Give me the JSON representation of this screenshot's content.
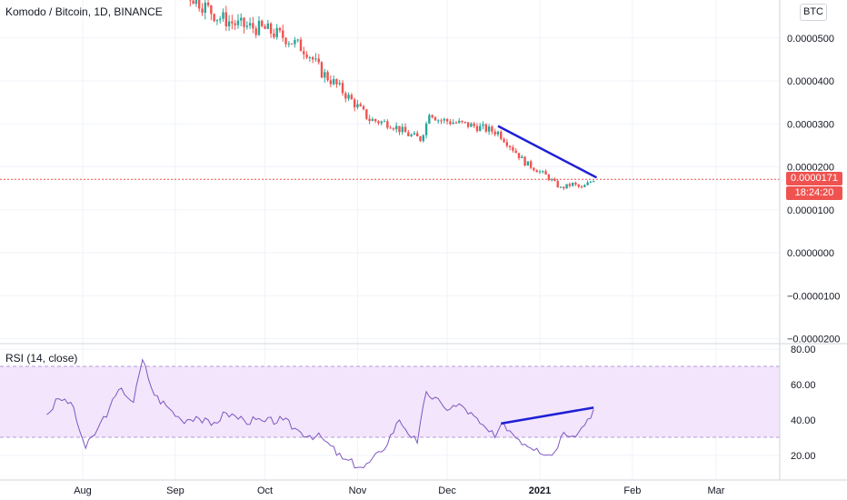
{
  "header": {
    "symbol_title": "Komodo / Bitcoin, 1D, BINANCE",
    "currency_badge": "BTC"
  },
  "price_tags": {
    "last_price": "0.0000171",
    "countdown": "18:24:20"
  },
  "rsi_panel": {
    "title": "RSI (14, close)"
  },
  "colors": {
    "up": "#26a69a",
    "down": "#ef5350",
    "trendline": "#1f1fd6",
    "rsi_line": "#7e57c2",
    "rsi_band": "#f3e5fb",
    "last_price_line": "#ef5350"
  },
  "chart_data": [
    {
      "type": "candlestick",
      "title": "Komodo / Bitcoin, 1D, BINANCE",
      "x_axis": {
        "ticks": [
          "Aug",
          "Sep",
          "Oct",
          "Nov",
          "Dec",
          "2021",
          "Feb",
          "Mar"
        ]
      },
      "y_axis": {
        "ticks": [
          "0.0000500",
          "0.0000400",
          "0.0000300",
          "0.0000200",
          "0.0000100",
          "0.0000000",
          "−0.0000100",
          "−0.0000200"
        ],
        "range": [
          -2.1e-05,
          6.2e-05
        ]
      },
      "last_price": 1.71e-05,
      "close_path": [
        {
          "date": "2020-07-26",
          "close": 6.6e-05
        },
        {
          "date": "2020-08-05",
          "close": 6.5e-05
        },
        {
          "date": "2020-08-20",
          "close": 6.9e-05
        },
        {
          "date": "2020-09-01",
          "close": 6.2e-05
        },
        {
          "date": "2020-09-08",
          "close": 5.9e-05
        },
        {
          "date": "2020-09-15",
          "close": 5.5e-05
        },
        {
          "date": "2020-09-22",
          "close": 5.3e-05
        },
        {
          "date": "2020-10-01",
          "close": 5.2e-05
        },
        {
          "date": "2020-10-08",
          "close": 5e-05
        },
        {
          "date": "2020-10-15",
          "close": 4.7e-05
        },
        {
          "date": "2020-10-20",
          "close": 4.2e-05
        },
        {
          "date": "2020-10-25",
          "close": 3.9e-05
        },
        {
          "date": "2020-11-01",
          "close": 3.4e-05
        },
        {
          "date": "2020-11-05",
          "close": 3.1e-05
        },
        {
          "date": "2020-11-12",
          "close": 3e-05
        },
        {
          "date": "2020-11-18",
          "close": 2.75e-05
        },
        {
          "date": "2020-11-22",
          "close": 2.65e-05
        },
        {
          "date": "2020-11-24",
          "close": 3e-05
        },
        {
          "date": "2020-11-25",
          "close": 3.3e-05
        },
        {
          "date": "2020-11-28",
          "close": 3.1e-05
        },
        {
          "date": "2020-12-02",
          "close": 3.05e-05
        },
        {
          "date": "2020-12-10",
          "close": 2.95e-05
        },
        {
          "date": "2020-12-18",
          "close": 2.8e-05
        },
        {
          "date": "2020-12-22",
          "close": 2.5e-05
        },
        {
          "date": "2020-12-27",
          "close": 2.1e-05
        },
        {
          "date": "2021-01-03",
          "close": 1.8e-05
        },
        {
          "date": "2021-01-08",
          "close": 1.5e-05
        },
        {
          "date": "2021-01-12",
          "close": 1.6e-05
        },
        {
          "date": "2021-01-15",
          "close": 1.5e-05
        },
        {
          "date": "2021-01-19",
          "close": 1.71e-05
        }
      ],
      "trendline": [
        {
          "date": "2020-12-18",
          "value": 2.95e-05
        },
        {
          "date": "2021-01-20",
          "value": 1.75e-05
        }
      ]
    },
    {
      "type": "line",
      "title": "RSI (14, close)",
      "y_axis": {
        "ticks": [
          "80.00",
          "60.00",
          "40.00",
          "20.00"
        ],
        "range": [
          12,
          80
        ]
      },
      "band": [
        30,
        70
      ],
      "series": [
        {
          "values": [
            {
              "date": "2020-07-20",
              "rsi": 43
            },
            {
              "date": "2020-07-24",
              "rsi": 52
            },
            {
              "date": "2020-07-28",
              "rsi": 50
            },
            {
              "date": "2020-08-02",
              "rsi": 24
            },
            {
              "date": "2020-08-06",
              "rsi": 35
            },
            {
              "date": "2020-08-10",
              "rsi": 47
            },
            {
              "date": "2020-08-14",
              "rsi": 58
            },
            {
              "date": "2020-08-18",
              "rsi": 50
            },
            {
              "date": "2020-08-21",
              "rsi": 74
            },
            {
              "date": "2020-08-25",
              "rsi": 54
            },
            {
              "date": "2020-08-29",
              "rsi": 48
            },
            {
              "date": "2020-09-03",
              "rsi": 40
            },
            {
              "date": "2020-09-08",
              "rsi": 42
            },
            {
              "date": "2020-09-13",
              "rsi": 37
            },
            {
              "date": "2020-09-18",
              "rsi": 44
            },
            {
              "date": "2020-09-24",
              "rsi": 40
            },
            {
              "date": "2020-10-01",
              "rsi": 39
            },
            {
              "date": "2020-10-07",
              "rsi": 40
            },
            {
              "date": "2020-10-13",
              "rsi": 33
            },
            {
              "date": "2020-10-20",
              "rsi": 30
            },
            {
              "date": "2020-10-27",
              "rsi": 18
            },
            {
              "date": "2020-11-03",
              "rsi": 13
            },
            {
              "date": "2020-11-09",
              "rsi": 22
            },
            {
              "date": "2020-11-15",
              "rsi": 40
            },
            {
              "date": "2020-11-21",
              "rsi": 27
            },
            {
              "date": "2020-11-24",
              "rsi": 56
            },
            {
              "date": "2020-11-30",
              "rsi": 47
            },
            {
              "date": "2020-12-06",
              "rsi": 48
            },
            {
              "date": "2020-12-12",
              "rsi": 38
            },
            {
              "date": "2020-12-17",
              "rsi": 30
            },
            {
              "date": "2020-12-20",
              "rsi": 38
            },
            {
              "date": "2020-12-25",
              "rsi": 29
            },
            {
              "date": "2020-12-31",
              "rsi": 24
            },
            {
              "date": "2021-01-05",
              "rsi": 20
            },
            {
              "date": "2021-01-09",
              "rsi": 33
            },
            {
              "date": "2021-01-14",
              "rsi": 33
            },
            {
              "date": "2021-01-19",
              "rsi": 46
            }
          ]
        }
      ],
      "trendline": [
        {
          "date": "2020-12-19",
          "rsi": 38
        },
        {
          "date": "2021-01-19",
          "rsi": 47
        }
      ]
    }
  ]
}
